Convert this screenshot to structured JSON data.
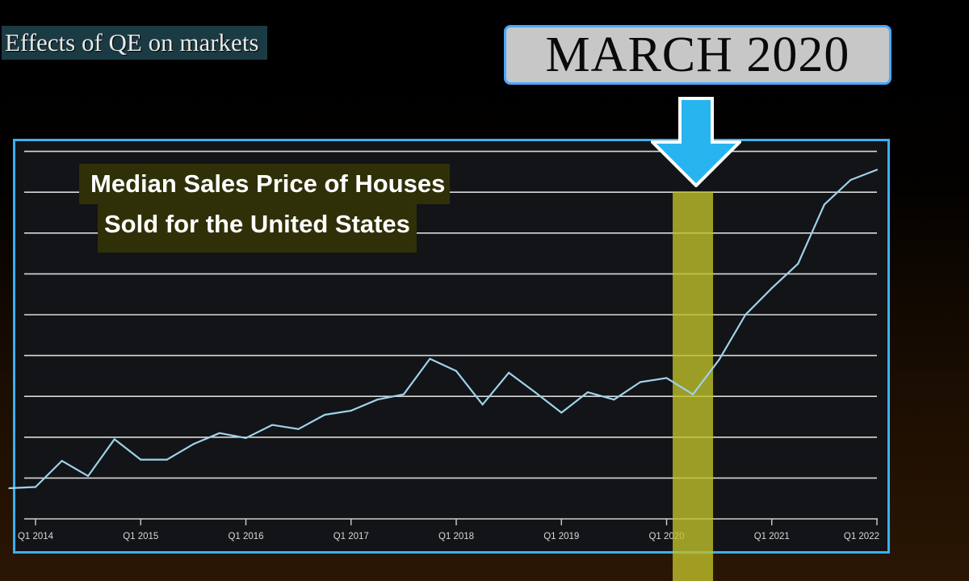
{
  "header": {
    "label": "Effects of QE on markets",
    "callout": "MARCH 2020"
  },
  "chart": {
    "title_line1": "Median Sales Price of Houses",
    "title_line2": "Sold for the United States"
  },
  "colors": {
    "frame": "#3ab0f2",
    "line": "#9fd2ea",
    "highlight": "#bfbf2a",
    "arrow": "#28b4ee"
  },
  "chart_data": {
    "type": "line",
    "title": "Median Sales Price of Houses Sold for the United States",
    "xlabel": "",
    "ylabel": "",
    "x_ticks": [
      "Q1 2014",
      "Q1 2015",
      "Q1 2016",
      "Q1 2017",
      "Q1 2018",
      "Q1 2019",
      "Q1 2020",
      "Q1 2021",
      "Q1 2022"
    ],
    "grid": true,
    "ylim": [
      0,
      9
    ],
    "highlight_quarter": "Q2 2020",
    "series": [
      {
        "x": [
          "Q4 2013",
          "Q1 2014",
          "Q2 2014",
          "Q3 2014",
          "Q4 2014",
          "Q1 2015",
          "Q2 2015",
          "Q3 2015",
          "Q4 2015",
          "Q1 2016",
          "Q2 2016",
          "Q3 2016",
          "Q4 2016",
          "Q1 2017",
          "Q2 2017",
          "Q3 2017",
          "Q4 2017",
          "Q1 2018",
          "Q2 2018",
          "Q3 2018",
          "Q4 2018",
          "Q1 2019",
          "Q2 2019",
          "Q3 2019",
          "Q4 2019",
          "Q1 2020",
          "Q2 2020",
          "Q3 2020",
          "Q4 2020",
          "Q1 2021",
          "Q2 2021",
          "Q3 2021",
          "Q4 2021",
          "Q1 2022"
        ],
        "values": [
          0.75,
          0.78,
          1.42,
          1.05,
          1.95,
          1.45,
          1.45,
          1.83,
          2.1,
          1.98,
          2.3,
          2.2,
          2.55,
          2.65,
          2.92,
          3.05,
          3.92,
          3.62,
          2.8,
          3.58,
          3.1,
          2.6,
          3.1,
          2.92,
          3.35,
          3.45,
          3.05,
          3.9,
          5.0,
          5.65,
          6.25,
          7.7,
          8.3,
          8.55
        ]
      }
    ]
  }
}
